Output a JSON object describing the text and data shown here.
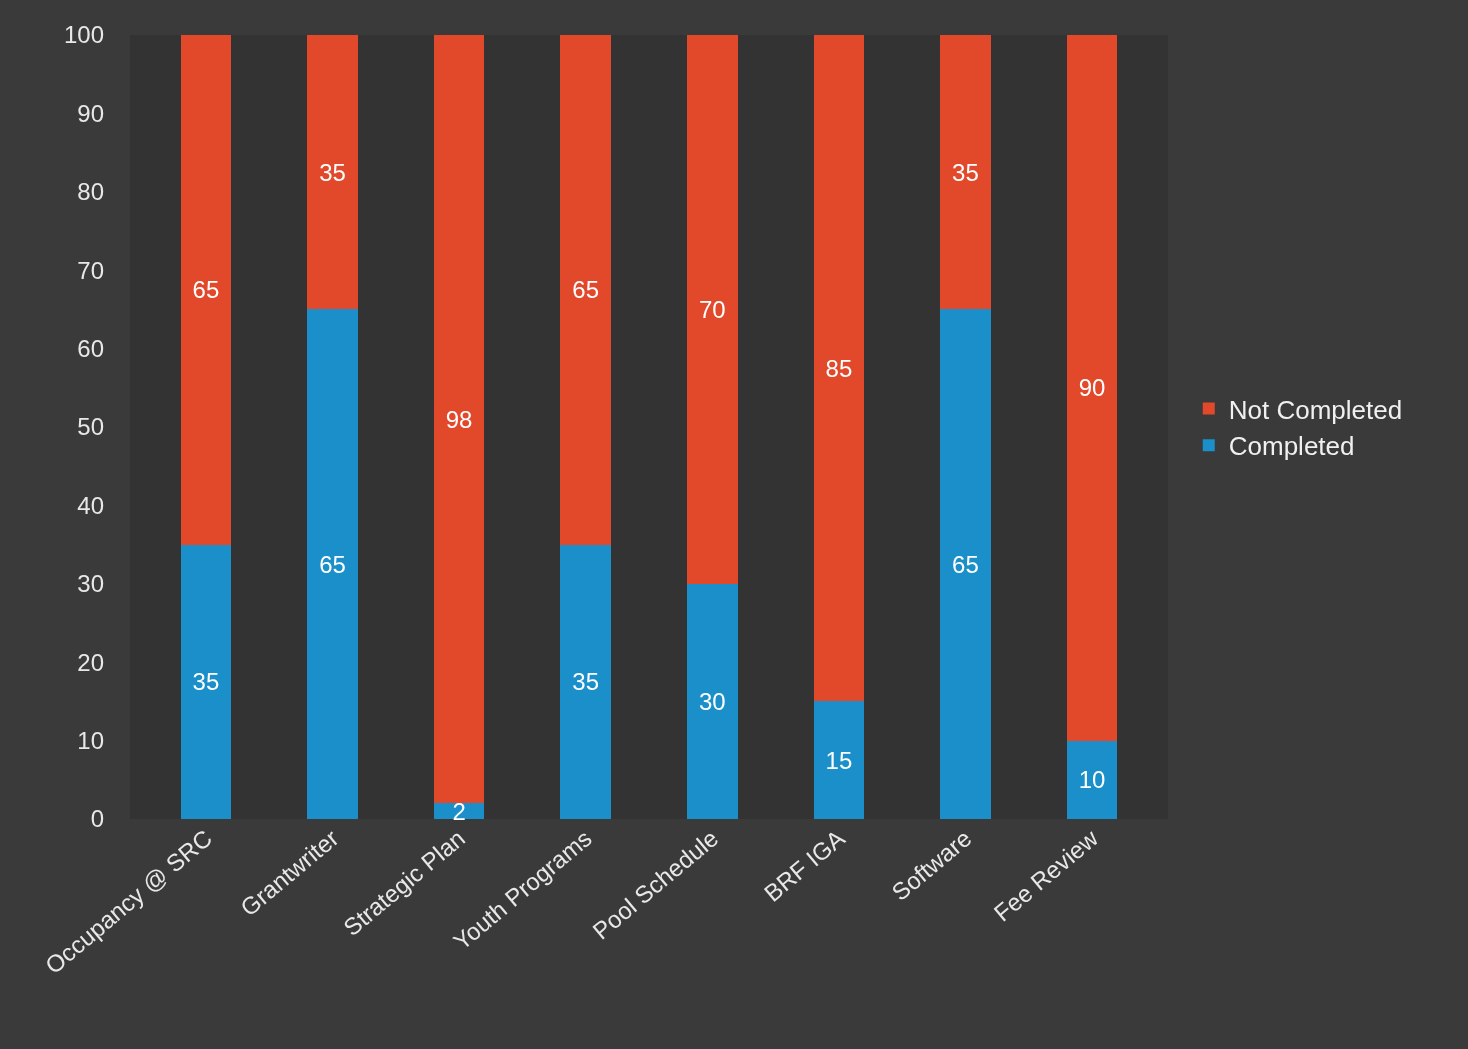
{
  "chart_data": {
    "type": "bar",
    "stacked": true,
    "categories": [
      "Occupancy @ SRC",
      "Grantwriter",
      "Strategic Plan",
      "Youth Programs",
      "Pool Schedule",
      "BRF IGA",
      "Software",
      "Fee Review"
    ],
    "series": [
      {
        "name": "Completed",
        "color": "#1a8fc9",
        "values": [
          35,
          65,
          2,
          35,
          30,
          15,
          65,
          10
        ]
      },
      {
        "name": "Not Completed",
        "color": "#e2492b",
        "values": [
          65,
          35,
          98,
          65,
          70,
          85,
          35,
          90
        ]
      }
    ],
    "ylim": [
      0,
      100
    ],
    "yticks": [
      0,
      10,
      20,
      30,
      40,
      50,
      60,
      70,
      80,
      90,
      100
    ],
    "grid": false,
    "legend": "right",
    "data_labels": true
  }
}
